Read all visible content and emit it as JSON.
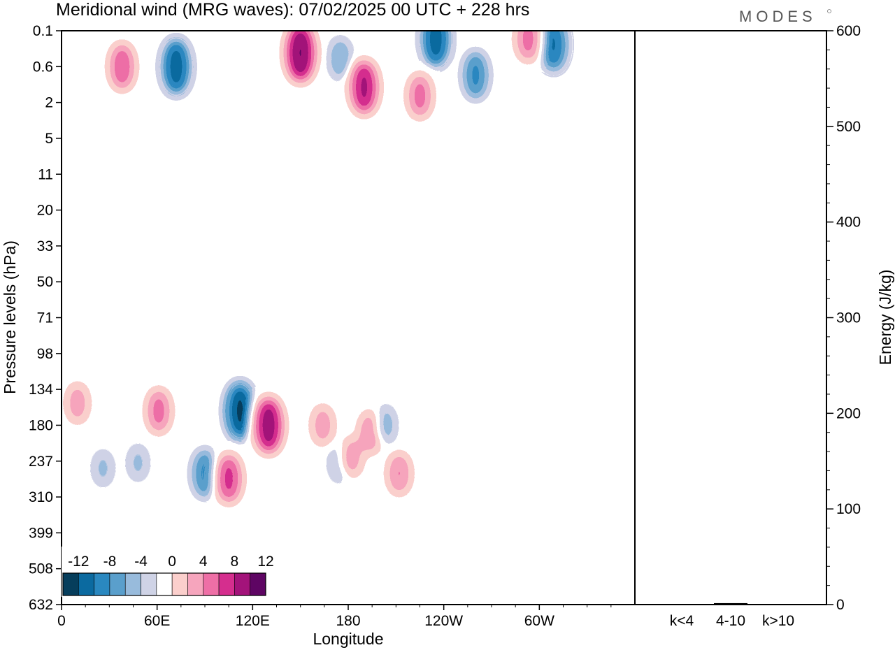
{
  "title": "Meridional wind (MRG waves):  07/02/2025  00 UTC  + 228 hrs",
  "brand": "MODES",
  "chart_data": [
    {
      "type": "heatmap",
      "variable": "Meridional wind",
      "xlabel": "Longitude",
      "ylabel": "Pressure levels (hPa)",
      "x_ticks": [
        "0",
        "60E",
        "120E",
        "180",
        "120W",
        "60W"
      ],
      "y_ticks": [
        "0.1",
        "0.6",
        "2",
        "5",
        "11",
        "20",
        "33",
        "50",
        "71",
        "98",
        "134",
        "180",
        "237",
        "310",
        "399",
        "508",
        "632"
      ],
      "colorbar": {
        "levels": [
          -14,
          -12,
          -10,
          -8,
          -6,
          -4,
          -2,
          2,
          4,
          6,
          8,
          10,
          12,
          14
        ],
        "tick_labels": [
          "-12",
          "-8",
          "-4",
          "0",
          "4",
          "8",
          "12"
        ],
        "colors": [
          "#063e5c",
          "#0b6aa0",
          "#2a88c0",
          "#5a9fcc",
          "#98bbdc",
          "#cfd3e6",
          "#ffffff",
          "#fbcfcc",
          "#f6a5bd",
          "#ee6fa6",
          "#d52e8e",
          "#a3137a",
          "#5e0563"
        ]
      },
      "features": [
        {
          "lon": 150,
          "level": "0.3",
          "value": 14
        },
        {
          "lon": 72,
          "level": "0.6",
          "value": -13
        },
        {
          "lon": 190,
          "level": "1.2",
          "value": 12
        },
        {
          "lon": 235,
          "level": "0.15",
          "value": -13
        },
        {
          "lon": 260,
          "level": "0.8",
          "value": -10
        },
        {
          "lon": 38,
          "level": "0.6",
          "value": 9
        },
        {
          "lon": 175,
          "level": "0.4",
          "value": -7
        },
        {
          "lon": 225,
          "level": "1.6",
          "value": 8
        },
        {
          "lon": 293,
          "level": "0.15",
          "value": 8
        },
        {
          "lon": 309,
          "level": "0.2",
          "value": -12
        },
        {
          "lon": 112,
          "level": "160",
          "value": -14
        },
        {
          "lon": 130,
          "level": "180",
          "value": 13
        },
        {
          "lon": 90,
          "level": "260",
          "value": -10
        },
        {
          "lon": 105,
          "level": "270",
          "value": 10
        },
        {
          "lon": 61,
          "level": "160",
          "value": 8
        },
        {
          "lon": 164,
          "level": "180",
          "value": 6
        },
        {
          "lon": 175,
          "level": "240",
          "value": -6
        },
        {
          "lon": 182,
          "level": "230",
          "value": 6
        },
        {
          "lon": 194,
          "level": "190",
          "value": 7
        },
        {
          "lon": 203,
          "level": "180",
          "value": -6
        },
        {
          "lon": 212,
          "level": "260",
          "value": 7
        },
        {
          "lon": 10,
          "level": "150",
          "value": 6
        },
        {
          "lon": 26,
          "level": "250",
          "value": -5
        },
        {
          "lon": 48,
          "level": "240",
          "value": -5
        }
      ]
    },
    {
      "type": "bar",
      "ylabel": "Energy (J/kg)",
      "ylim": [
        0,
        600
      ],
      "y_ticks": [
        "0",
        "100",
        "200",
        "300",
        "400",
        "500",
        "600"
      ],
      "categories": [
        "k<4",
        "4-10",
        "k>10"
      ],
      "values": [
        0.3,
        1.5,
        0.2
      ]
    }
  ]
}
